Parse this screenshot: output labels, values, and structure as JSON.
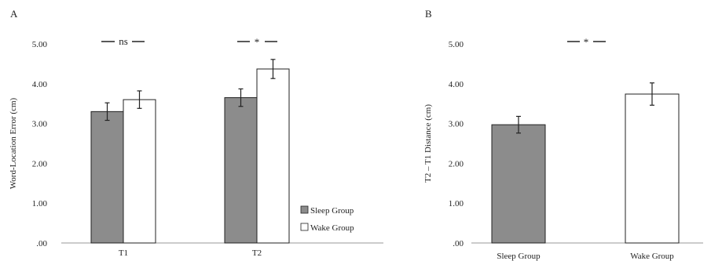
{
  "colors": {
    "sleep": "#8c8c8c",
    "wake": "#ffffff",
    "stroke": "#222222"
  },
  "chart_data": [
    {
      "type": "bar",
      "panel_label": "A",
      "ylabel": "Word-Location Error (cm)",
      "ylim": [
        0,
        5
      ],
      "y_ticks": [
        ".00",
        "1.00",
        "2.00",
        "3.00",
        "4.00",
        "5.00"
      ],
      "categories": [
        "T1",
        "T2"
      ],
      "series": [
        {
          "name": "Sleep Group",
          "values": [
            3.3,
            3.65
          ],
          "errors": [
            0.22,
            0.22
          ]
        },
        {
          "name": "Wake Group",
          "values": [
            3.6,
            4.37
          ],
          "errors": [
            0.22,
            0.24
          ]
        }
      ],
      "legend": {
        "position": "bottom-right",
        "entries": [
          "Sleep Group",
          "Wake Group"
        ]
      },
      "annotations": [
        "ns",
        "*"
      ],
      "grid": false
    },
    {
      "type": "bar",
      "panel_label": "B",
      "ylabel": "T2 – T1 Distance (cm)",
      "ylim": [
        0,
        5
      ],
      "y_ticks": [
        ".00",
        "1.00",
        "2.00",
        "3.00",
        "4.00",
        "5.00"
      ],
      "categories": [
        "Sleep Group",
        "Wake Group"
      ],
      "values": [
        2.97,
        3.74
      ],
      "errors": [
        0.21,
        0.28
      ],
      "annotations": [
        "*"
      ],
      "grid": false
    }
  ]
}
